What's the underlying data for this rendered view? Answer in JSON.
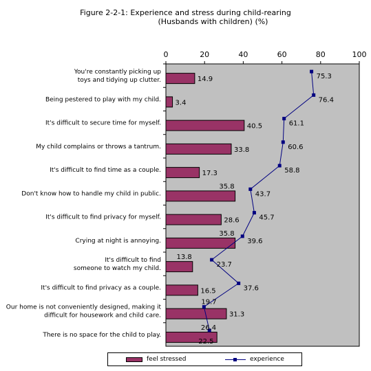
{
  "chart_data": {
    "type": "bar",
    "title": "Figure 2-2-1: Experience and stress during child-rearing",
    "subtitle": "(Husbands with children) (%)",
    "categories": [
      "You're constantly picking up toys and tidying up clutter.",
      "Being pestered to play with my child.",
      "It's difficult to secure time for myself.",
      "My child complains or throws a tantrum.",
      "It's difficult to find time as a couple.",
      "Don't know how to handle my child in public.",
      "It's difficult to find privacy for myself.",
      "Crying at night is annoying.",
      "It's difficult to find someone to watch my child.",
      "It's difficult to find privacy as a couple.",
      "Our home is not conveniently designed, making it difficult for housework and child care.",
      "There is no space for the child to play."
    ],
    "series": [
      {
        "name": "feel stressed",
        "type": "bar",
        "color": "#993366",
        "values": [
          14.9,
          3.4,
          40.5,
          33.8,
          17.3,
          35.8,
          28.6,
          35.8,
          13.8,
          16.5,
          31.3,
          26.4
        ]
      },
      {
        "name": "experience",
        "type": "line",
        "color": "#000080",
        "values": [
          75.3,
          76.4,
          61.1,
          60.6,
          58.8,
          43.7,
          45.7,
          39.6,
          23.7,
          37.6,
          19.7,
          22.5
        ]
      }
    ],
    "xlim": [
      0,
      100
    ],
    "xticks": [
      "0",
      "20",
      "40",
      "60",
      "80",
      "100"
    ],
    "orientation": "horizontal",
    "grid": false,
    "plot_background": "#c0c0c0",
    "legend_position": "bottom"
  }
}
